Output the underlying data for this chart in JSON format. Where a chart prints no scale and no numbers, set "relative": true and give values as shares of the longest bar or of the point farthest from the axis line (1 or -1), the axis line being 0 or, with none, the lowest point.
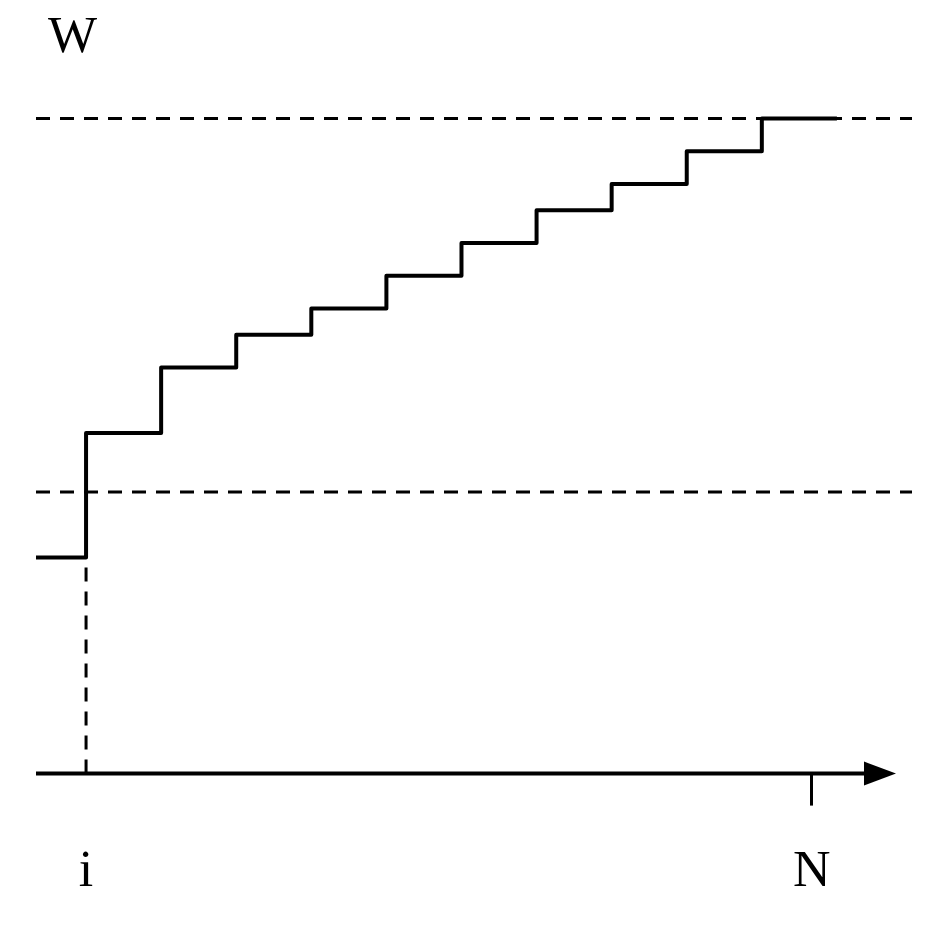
{
  "chart_data": {
    "type": "step",
    "relative": true,
    "ylabel": "W",
    "categories": [
      null,
      null,
      "i",
      null,
      null,
      null,
      null,
      null,
      null,
      null,
      null,
      null,
      null,
      null,
      null,
      null,
      null,
      null,
      null,
      null,
      null,
      null,
      null,
      null,
      null,
      null,
      null,
      null,
      null,
      null,
      null,
      "N",
      null,
      null,
      null,
      null
    ],
    "series": [
      {
        "color": "#000000",
        "values": [
          0.33,
          0.33,
          0.52,
          0.52,
          0.52,
          0.62,
          0.62,
          0.62,
          0.67,
          0.67,
          0.67,
          0.71,
          0.71,
          0.71,
          0.76,
          0.76,
          0.76,
          0.81,
          0.81,
          0.81,
          0.86,
          0.86,
          0.86,
          0.9,
          0.9,
          0.9,
          0.95,
          0.95,
          0.95,
          1.0,
          1.0,
          1.0,
          1.0,
          null,
          null,
          null
        ]
      }
    ],
    "ref_lines": [
      {
        "axis": "y",
        "value": 1.0,
        "line_style": "dashed"
      },
      {
        "axis": "y",
        "value": 0.43,
        "line_style": "dashed"
      },
      {
        "axis": "x",
        "value": "i",
        "line_style": "dashed"
      }
    ],
    "grid": false,
    "legend": false
  }
}
